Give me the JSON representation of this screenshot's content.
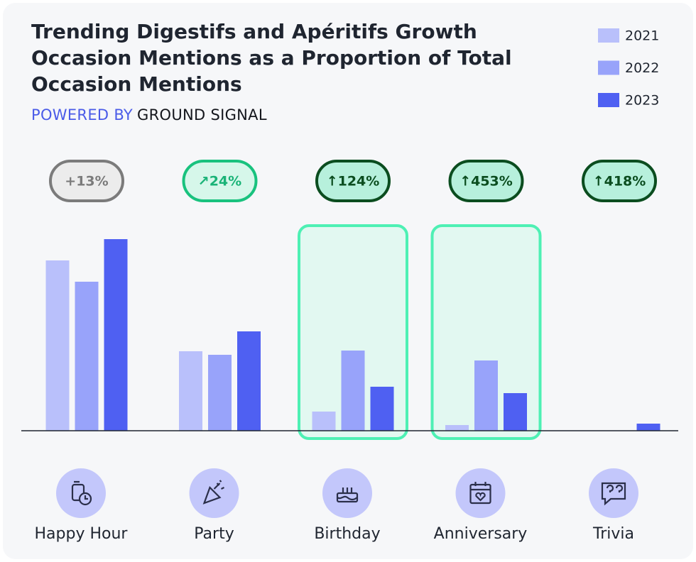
{
  "chart_data": {
    "type": "bar",
    "title": "Trending Digestifs and Apéritifs Growth Occasion Mentions as a Proportion of Total Occasion Mentions",
    "subtitle": [
      "POWERED BY",
      "GROUND SIGNAL"
    ],
    "categories": [
      "Happy Hour",
      "Party",
      "Birthday",
      "Anniversary",
      "Trivia"
    ],
    "series": [
      {
        "name": "2021",
        "color": "#b9c0fb",
        "values": [
          240,
          112,
          27,
          8,
          0
        ]
      },
      {
        "name": "2022",
        "color": "#98a3fa",
        "values": [
          210,
          107,
          113,
          99,
          0
        ]
      },
      {
        "name": "2023",
        "color": "#4f60f2",
        "values": [
          270,
          140,
          62,
          53,
          10
        ]
      }
    ],
    "annotations": [
      "+13%",
      "↗24%",
      "↑124%",
      "↑453%",
      "↑418%"
    ],
    "ylim": [
      0,
      300
    ]
  }
}
